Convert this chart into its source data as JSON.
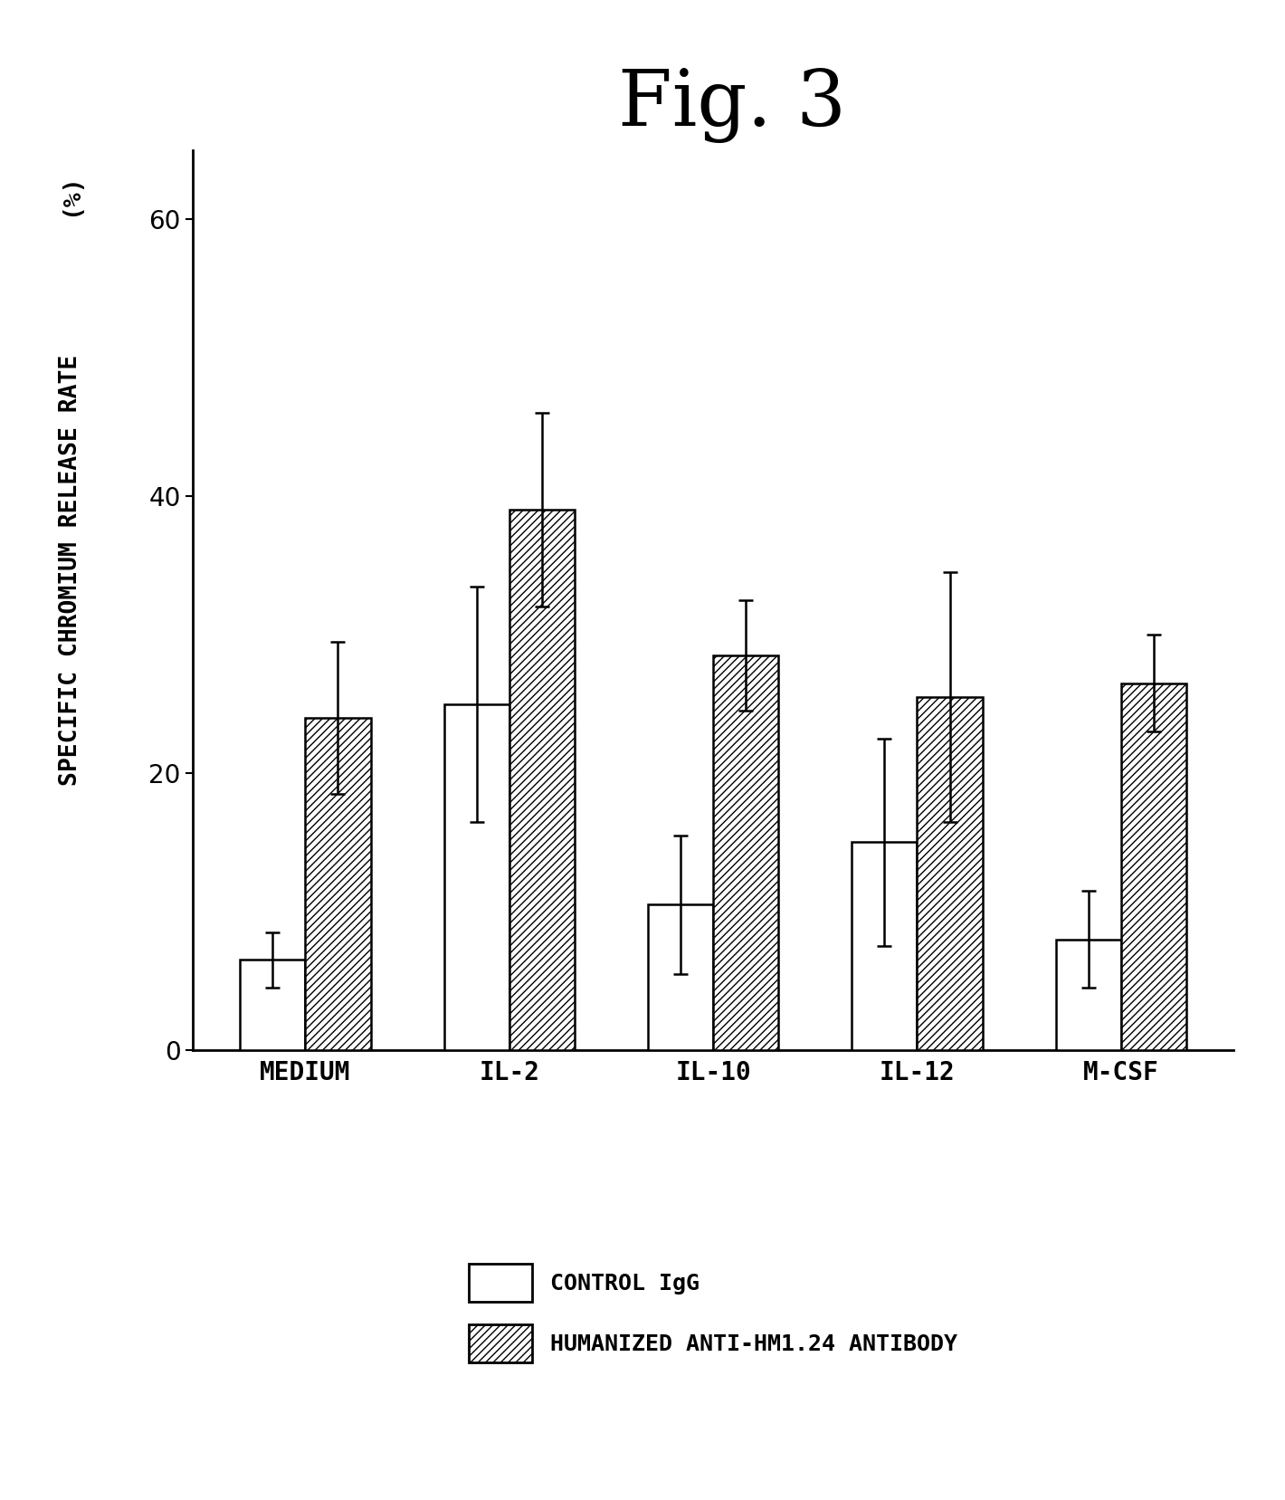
{
  "title": "Fig. 3",
  "ylabel_line1": "SPECIFIC CHROMIUM RELEASE RATE",
  "ylabel_line2": "(%)",
  "categories": [
    "MEDIUM",
    "IL-2",
    "IL-10",
    "IL-12",
    "M-CSF"
  ],
  "control_values": [
    6.5,
    25.0,
    10.5,
    15.0,
    8.0
  ],
  "control_errors": [
    2.0,
    8.5,
    5.0,
    7.5,
    3.5
  ],
  "humanized_values": [
    24.0,
    39.0,
    28.5,
    25.5,
    26.5
  ],
  "humanized_errors": [
    5.5,
    7.0,
    4.0,
    9.0,
    3.5
  ],
  "ylim": [
    0,
    65
  ],
  "yticks": [
    0,
    20,
    40,
    60
  ],
  "bar_width": 0.32,
  "control_color": "white",
  "control_edgecolor": "black",
  "humanized_hatch": "////",
  "humanized_edgecolor": "black",
  "legend_control_label": "CONTROL IgG",
  "legend_humanized_label": "HUMANIZED ANTI-HM1.24 ANTIBODY",
  "title_fontsize": 62,
  "axis_label_fontsize": 19,
  "tick_fontsize": 20,
  "category_fontsize": 20,
  "legend_fontsize": 18,
  "background_color": "white",
  "capsize": 6
}
